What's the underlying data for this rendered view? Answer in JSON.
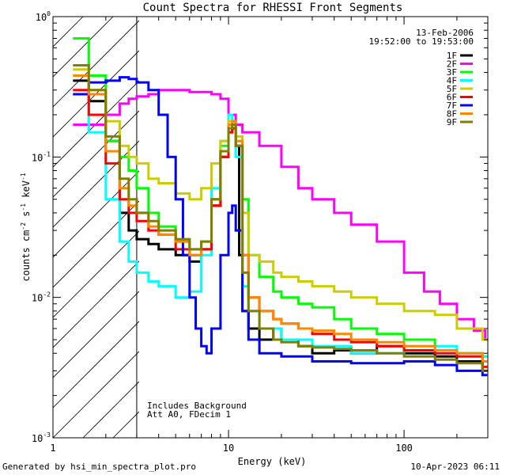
{
  "chart_data": {
    "type": "line",
    "title": "Count Spectra for RHESSI Front Segments",
    "xlabel": "Energy (keV)",
    "ylabel_parts": [
      "counts cm",
      "-2",
      " s",
      "-1",
      " keV",
      "-1"
    ],
    "xscale": "log",
    "yscale": "log",
    "xlim": [
      1.0,
      300.0
    ],
    "ylim": [
      0.001,
      1.0
    ],
    "x_ticks": [
      {
        "value": 1,
        "label": "1"
      },
      {
        "value": 10,
        "label": "10"
      },
      {
        "value": 100,
        "label": "100"
      }
    ],
    "y_ticks": [
      {
        "value": 0.001,
        "mant": "10",
        "exp": "-3"
      },
      {
        "value": 0.01,
        "mant": "10",
        "exp": "-2"
      },
      {
        "value": 0.1,
        "mant": "10",
        "exp": "-1"
      },
      {
        "value": 1,
        "mant": "10",
        "exp": "0"
      }
    ],
    "date": "13-Feb-2006",
    "time_range": "19:52:00 to 19:53:00",
    "hatched_region_max_keV": 3.0,
    "annotation_lines": [
      "Includes Background",
      "Att A0, FDecim 1"
    ],
    "series": [
      {
        "name": "1F",
        "color": "#000000",
        "points": [
          [
            1.3,
            0.35
          ],
          [
            1.6,
            0.25
          ],
          [
            2.0,
            0.13
          ],
          [
            2.4,
            0.04
          ],
          [
            2.7,
            0.03
          ],
          [
            3.0,
            0.026
          ],
          [
            3.5,
            0.024
          ],
          [
            4.0,
            0.022
          ],
          [
            5.0,
            0.02
          ],
          [
            6.0,
            0.018
          ],
          [
            7.0,
            0.022
          ],
          [
            8.0,
            0.045
          ],
          [
            9.0,
            0.1
          ],
          [
            10.0,
            0.15
          ],
          [
            10.5,
            0.16
          ],
          [
            11.0,
            0.12
          ],
          [
            11.5,
            0.02
          ],
          [
            12.0,
            0.008
          ],
          [
            13.0,
            0.006
          ],
          [
            15.0,
            0.005
          ],
          [
            18.0,
            0.006
          ],
          [
            20.0,
            0.005
          ],
          [
            25.0,
            0.0045
          ],
          [
            30.0,
            0.004
          ],
          [
            40.0,
            0.0042
          ],
          [
            50.0,
            0.004
          ],
          [
            70.0,
            0.0045
          ],
          [
            100.0,
            0.004
          ],
          [
            150.0,
            0.0038
          ],
          [
            200.0,
            0.0035
          ],
          [
            280.0,
            0.003
          ]
        ]
      },
      {
        "name": "2F",
        "color": "#ff00ff",
        "points": [
          [
            1.3,
            0.17
          ],
          [
            1.6,
            0.17
          ],
          [
            2.0,
            0.2
          ],
          [
            2.4,
            0.24
          ],
          [
            2.7,
            0.26
          ],
          [
            3.0,
            0.27
          ],
          [
            3.5,
            0.28
          ],
          [
            4.0,
            0.3
          ],
          [
            5.0,
            0.3
          ],
          [
            6.0,
            0.29
          ],
          [
            7.0,
            0.29
          ],
          [
            8.0,
            0.28
          ],
          [
            9.0,
            0.26
          ],
          [
            10.0,
            0.2
          ],
          [
            11.0,
            0.17
          ],
          [
            12.0,
            0.15
          ],
          [
            15.0,
            0.12
          ],
          [
            20.0,
            0.085
          ],
          [
            25.0,
            0.06
          ],
          [
            30.0,
            0.05
          ],
          [
            40.0,
            0.04
          ],
          [
            50.0,
            0.033
          ],
          [
            70.0,
            0.025
          ],
          [
            100.0,
            0.015
          ],
          [
            130.0,
            0.011
          ],
          [
            160.0,
            0.009
          ],
          [
            200.0,
            0.007
          ],
          [
            250.0,
            0.0058
          ],
          [
            290.0,
            0.005
          ]
        ]
      },
      {
        "name": "3F",
        "color": "#00ff00",
        "points": [
          [
            1.3,
            0.7
          ],
          [
            1.6,
            0.38
          ],
          [
            2.0,
            0.13
          ],
          [
            2.4,
            0.1
          ],
          [
            2.7,
            0.08
          ],
          [
            3.0,
            0.06
          ],
          [
            3.5,
            0.04
          ],
          [
            4.0,
            0.032
          ],
          [
            5.0,
            0.025
          ],
          [
            6.0,
            0.022
          ],
          [
            7.0,
            0.025
          ],
          [
            8.0,
            0.05
          ],
          [
            9.0,
            0.12
          ],
          [
            10.0,
            0.17
          ],
          [
            10.5,
            0.16
          ],
          [
            11.0,
            0.13
          ],
          [
            12.0,
            0.05
          ],
          [
            13.0,
            0.02
          ],
          [
            15.0,
            0.014
          ],
          [
            18.0,
            0.011
          ],
          [
            20.0,
            0.01
          ],
          [
            25.0,
            0.009
          ],
          [
            30.0,
            0.0085
          ],
          [
            40.0,
            0.007
          ],
          [
            50.0,
            0.006
          ],
          [
            70.0,
            0.0055
          ],
          [
            100.0,
            0.005
          ],
          [
            150.0,
            0.0042
          ],
          [
            200.0,
            0.004
          ],
          [
            280.0,
            0.0038
          ]
        ]
      },
      {
        "name": "4F",
        "color": "#00ffff",
        "points": [
          [
            1.3,
            0.28
          ],
          [
            1.6,
            0.15
          ],
          [
            2.0,
            0.05
          ],
          [
            2.4,
            0.025
          ],
          [
            2.7,
            0.018
          ],
          [
            3.0,
            0.015
          ],
          [
            3.5,
            0.013
          ],
          [
            4.0,
            0.012
          ],
          [
            5.0,
            0.01
          ],
          [
            6.0,
            0.011
          ],
          [
            7.0,
            0.02
          ],
          [
            8.0,
            0.06
          ],
          [
            9.0,
            0.13
          ],
          [
            10.0,
            0.2
          ],
          [
            10.5,
            0.17
          ],
          [
            11.0,
            0.1
          ],
          [
            12.0,
            0.012
          ],
          [
            13.0,
            0.008
          ],
          [
            15.0,
            0.006
          ],
          [
            20.0,
            0.005
          ],
          [
            30.0,
            0.0045
          ],
          [
            50.0,
            0.004
          ],
          [
            100.0,
            0.0042
          ],
          [
            150.0,
            0.0045
          ],
          [
            200.0,
            0.004
          ],
          [
            280.0,
            0.0038
          ]
        ]
      },
      {
        "name": "5F",
        "color": "#cccc00",
        "points": [
          [
            1.3,
            0.42
          ],
          [
            1.6,
            0.3
          ],
          [
            2.0,
            0.18
          ],
          [
            2.4,
            0.12
          ],
          [
            2.7,
            0.1
          ],
          [
            3.0,
            0.09
          ],
          [
            3.5,
            0.07
          ],
          [
            4.0,
            0.065
          ],
          [
            5.0,
            0.055
          ],
          [
            6.0,
            0.05
          ],
          [
            7.0,
            0.06
          ],
          [
            8.0,
            0.09
          ],
          [
            9.0,
            0.13
          ],
          [
            10.0,
            0.18
          ],
          [
            10.5,
            0.17
          ],
          [
            11.0,
            0.14
          ],
          [
            12.0,
            0.04
          ],
          [
            13.0,
            0.02
          ],
          [
            15.0,
            0.018
          ],
          [
            18.0,
            0.015
          ],
          [
            20.0,
            0.014
          ],
          [
            25.0,
            0.013
          ],
          [
            30.0,
            0.012
          ],
          [
            40.0,
            0.011
          ],
          [
            50.0,
            0.01
          ],
          [
            70.0,
            0.009
          ],
          [
            100.0,
            0.008
          ],
          [
            150.0,
            0.0075
          ],
          [
            200.0,
            0.006
          ],
          [
            280.0,
            0.005
          ]
        ]
      },
      {
        "name": "6F",
        "color": "#ff0000",
        "points": [
          [
            1.3,
            0.3
          ],
          [
            1.6,
            0.2
          ],
          [
            2.0,
            0.09
          ],
          [
            2.4,
            0.05
          ],
          [
            2.7,
            0.04
          ],
          [
            3.0,
            0.035
          ],
          [
            3.5,
            0.03
          ],
          [
            4.0,
            0.028
          ],
          [
            5.0,
            0.022
          ],
          [
            6.0,
            0.02
          ],
          [
            7.0,
            0.022
          ],
          [
            8.0,
            0.045
          ],
          [
            9.0,
            0.1
          ],
          [
            10.0,
            0.15
          ],
          [
            10.5,
            0.16
          ],
          [
            11.0,
            0.12
          ],
          [
            12.0,
            0.02
          ],
          [
            13.0,
            0.01
          ],
          [
            15.0,
            0.008
          ],
          [
            18.0,
            0.007
          ],
          [
            20.0,
            0.0065
          ],
          [
            25.0,
            0.006
          ],
          [
            30.0,
            0.0055
          ],
          [
            40.0,
            0.005
          ],
          [
            50.0,
            0.0048
          ],
          [
            70.0,
            0.0045
          ],
          [
            100.0,
            0.0042
          ],
          [
            150.0,
            0.004
          ],
          [
            200.0,
            0.0038
          ],
          [
            280.0,
            0.0032
          ]
        ]
      },
      {
        "name": "7F",
        "color": "#0000ff",
        "points": [
          [
            1.3,
            0.28
          ],
          [
            1.6,
            0.34
          ],
          [
            2.0,
            0.35
          ],
          [
            2.4,
            0.37
          ],
          [
            2.7,
            0.36
          ],
          [
            3.0,
            0.34
          ],
          [
            3.5,
            0.3
          ],
          [
            4.0,
            0.2
          ],
          [
            4.5,
            0.1
          ],
          [
            5.0,
            0.05
          ],
          [
            5.5,
            0.02
          ],
          [
            6.0,
            0.01
          ],
          [
            6.5,
            0.006
          ],
          [
            7.0,
            0.0045
          ],
          [
            7.5,
            0.004
          ],
          [
            8.0,
            0.006
          ],
          [
            9.0,
            0.02
          ],
          [
            10.0,
            0.04
          ],
          [
            10.5,
            0.045
          ],
          [
            11.0,
            0.03
          ],
          [
            12.0,
            0.008
          ],
          [
            13.0,
            0.005
          ],
          [
            15.0,
            0.004
          ],
          [
            20.0,
            0.0038
          ],
          [
            30.0,
            0.0035
          ],
          [
            50.0,
            0.0034
          ],
          [
            100.0,
            0.0035
          ],
          [
            150.0,
            0.0033
          ],
          [
            200.0,
            0.003
          ],
          [
            280.0,
            0.0028
          ]
        ]
      },
      {
        "name": "8F",
        "color": "#ff8800",
        "points": [
          [
            1.3,
            0.38
          ],
          [
            1.6,
            0.28
          ],
          [
            2.0,
            0.11
          ],
          [
            2.4,
            0.06
          ],
          [
            2.7,
            0.045
          ],
          [
            3.0,
            0.04
          ],
          [
            3.5,
            0.032
          ],
          [
            4.0,
            0.028
          ],
          [
            5.0,
            0.025
          ],
          [
            6.0,
            0.02
          ],
          [
            7.0,
            0.025
          ],
          [
            8.0,
            0.05
          ],
          [
            9.0,
            0.11
          ],
          [
            10.0,
            0.17
          ],
          [
            10.5,
            0.18
          ],
          [
            11.0,
            0.13
          ],
          [
            12.0,
            0.02
          ],
          [
            13.0,
            0.01
          ],
          [
            15.0,
            0.008
          ],
          [
            18.0,
            0.007
          ],
          [
            20.0,
            0.0065
          ],
          [
            25.0,
            0.006
          ],
          [
            30.0,
            0.0058
          ],
          [
            40.0,
            0.0055
          ],
          [
            50.0,
            0.005
          ],
          [
            70.0,
            0.0048
          ],
          [
            100.0,
            0.0045
          ],
          [
            150.0,
            0.0042
          ],
          [
            200.0,
            0.004
          ],
          [
            280.0,
            0.0035
          ]
        ]
      },
      {
        "name": "9F",
        "color": "#808000",
        "points": [
          [
            1.3,
            0.45
          ],
          [
            1.6,
            0.3
          ],
          [
            2.0,
            0.14
          ],
          [
            2.4,
            0.07
          ],
          [
            2.7,
            0.05
          ],
          [
            3.0,
            0.04
          ],
          [
            3.5,
            0.035
          ],
          [
            4.0,
            0.03
          ],
          [
            5.0,
            0.026
          ],
          [
            6.0,
            0.022
          ],
          [
            7.0,
            0.025
          ],
          [
            8.0,
            0.05
          ],
          [
            9.0,
            0.11
          ],
          [
            10.0,
            0.16
          ],
          [
            10.5,
            0.17
          ],
          [
            11.0,
            0.12
          ],
          [
            12.0,
            0.015
          ],
          [
            13.0,
            0.008
          ],
          [
            15.0,
            0.006
          ],
          [
            18.0,
            0.005
          ],
          [
            20.0,
            0.0048
          ],
          [
            25.0,
            0.0045
          ],
          [
            30.0,
            0.0044
          ],
          [
            40.0,
            0.0043
          ],
          [
            50.0,
            0.0042
          ],
          [
            70.0,
            0.004
          ],
          [
            100.0,
            0.0038
          ],
          [
            150.0,
            0.0036
          ],
          [
            200.0,
            0.0034
          ],
          [
            280.0,
            0.003
          ]
        ]
      }
    ]
  },
  "footer": {
    "generated_by": "Generated by hsi_min_spectra_plot.pro",
    "timestamp": "10-Apr-2023 06:11"
  }
}
